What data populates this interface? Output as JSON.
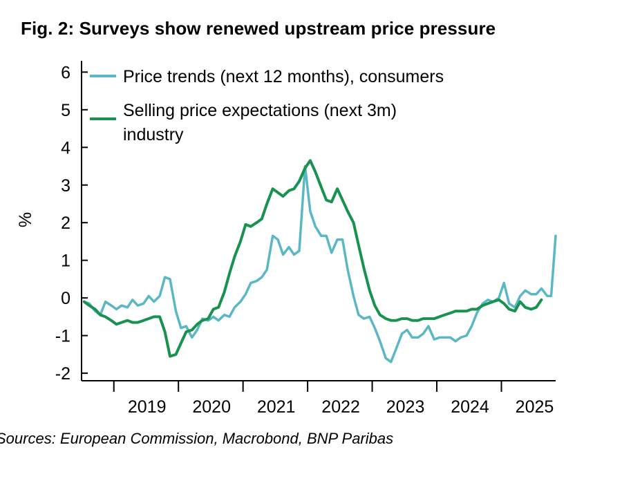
{
  "title": "Fig. 2: Surveys show renewed upstream price pressure",
  "source": "Sources: European Commission, Macrobond, BNP Paribas",
  "chart_data": {
    "type": "line",
    "ylabel": "%",
    "ylim": [
      -2.2,
      6.3
    ],
    "yticks": [
      -2,
      -1,
      0,
      1,
      2,
      3,
      4,
      5,
      6
    ],
    "xlim": [
      2018.5,
      2025.84
    ],
    "x_tick_positions": [
      2019,
      2020,
      2021,
      2022,
      2023,
      2024,
      2025
    ],
    "x_labels": [
      {
        "text": "2019",
        "x": 2019.0
      },
      {
        "text": "2020",
        "x": 2020.0
      },
      {
        "text": "2021",
        "x": 2021.0
      },
      {
        "text": "2022",
        "x": 2022.0
      },
      {
        "text": "2023",
        "x": 2023.0
      },
      {
        "text": "2024",
        "x": 2024.0
      },
      {
        "text": "2025",
        "x": 2025.0
      }
    ],
    "legend_position": "top-left",
    "series": [
      {
        "name": "Price trends (next 12 months), consumers",
        "legend_lines": [
          "Price trends (next 12 months), consumers"
        ],
        "color": "#5ab8c6",
        "points": [
          [
            2018.54,
            -0.1
          ],
          [
            2018.62,
            -0.15
          ],
          [
            2018.71,
            -0.35
          ],
          [
            2018.79,
            -0.45
          ],
          [
            2018.87,
            -0.1
          ],
          [
            2018.96,
            -0.2
          ],
          [
            2019.04,
            -0.3
          ],
          [
            2019.12,
            -0.2
          ],
          [
            2019.21,
            -0.25
          ],
          [
            2019.29,
            -0.05
          ],
          [
            2019.37,
            -0.2
          ],
          [
            2019.46,
            -0.15
          ],
          [
            2019.54,
            0.05
          ],
          [
            2019.62,
            -0.1
          ],
          [
            2019.71,
            0.05
          ],
          [
            2019.79,
            0.55
          ],
          [
            2019.87,
            0.5
          ],
          [
            2019.96,
            -0.35
          ],
          [
            2020.04,
            -0.8
          ],
          [
            2020.12,
            -0.75
          ],
          [
            2020.21,
            -1.05
          ],
          [
            2020.29,
            -0.85
          ],
          [
            2020.37,
            -0.55
          ],
          [
            2020.46,
            -0.6
          ],
          [
            2020.54,
            -0.5
          ],
          [
            2020.62,
            -0.6
          ],
          [
            2020.71,
            -0.45
          ],
          [
            2020.79,
            -0.5
          ],
          [
            2020.87,
            -0.25
          ],
          [
            2020.96,
            -0.1
          ],
          [
            2021.04,
            0.1
          ],
          [
            2021.12,
            0.4
          ],
          [
            2021.21,
            0.45
          ],
          [
            2021.29,
            0.55
          ],
          [
            2021.37,
            0.75
          ],
          [
            2021.46,
            1.65
          ],
          [
            2021.54,
            1.55
          ],
          [
            2021.62,
            1.15
          ],
          [
            2021.71,
            1.35
          ],
          [
            2021.79,
            1.15
          ],
          [
            2021.87,
            1.25
          ],
          [
            2021.96,
            3.5
          ],
          [
            2022.04,
            2.3
          ],
          [
            2022.12,
            1.9
          ],
          [
            2022.21,
            1.65
          ],
          [
            2022.29,
            1.65
          ],
          [
            2022.37,
            1.2
          ],
          [
            2022.46,
            1.55
          ],
          [
            2022.54,
            1.55
          ],
          [
            2022.62,
            0.75
          ],
          [
            2022.71,
            0.05
          ],
          [
            2022.79,
            -0.45
          ],
          [
            2022.87,
            -0.55
          ],
          [
            2022.96,
            -0.5
          ],
          [
            2023.04,
            -0.8
          ],
          [
            2023.12,
            -1.15
          ],
          [
            2023.21,
            -1.6
          ],
          [
            2023.29,
            -1.7
          ],
          [
            2023.37,
            -1.35
          ],
          [
            2023.46,
            -0.95
          ],
          [
            2023.54,
            -0.85
          ],
          [
            2023.62,
            -1.05
          ],
          [
            2023.71,
            -1.05
          ],
          [
            2023.79,
            -0.95
          ],
          [
            2023.87,
            -0.75
          ],
          [
            2023.96,
            -1.1
          ],
          [
            2024.04,
            -1.05
          ],
          [
            2024.12,
            -1.05
          ],
          [
            2024.21,
            -1.05
          ],
          [
            2024.29,
            -1.15
          ],
          [
            2024.37,
            -1.05
          ],
          [
            2024.46,
            -1.0
          ],
          [
            2024.54,
            -0.75
          ],
          [
            2024.62,
            -0.4
          ],
          [
            2024.71,
            -0.15
          ],
          [
            2024.79,
            -0.05
          ],
          [
            2024.87,
            -0.1
          ],
          [
            2024.96,
            -0.0
          ],
          [
            2025.04,
            0.4
          ],
          [
            2025.12,
            -0.15
          ],
          [
            2025.21,
            -0.25
          ],
          [
            2025.29,
            0.05
          ],
          [
            2025.37,
            0.2
          ],
          [
            2025.46,
            0.1
          ],
          [
            2025.54,
            0.1
          ],
          [
            2025.62,
            0.25
          ],
          [
            2025.71,
            0.05
          ],
          [
            2025.77,
            0.05
          ],
          [
            2025.84,
            1.65
          ]
        ]
      },
      {
        "name": "Selling price expectations (next 3m) industry",
        "legend_lines": [
          "Selling price expectations (next 3m)",
          "industry"
        ],
        "color": "#17924f",
        "points": [
          [
            2018.54,
            -0.1
          ],
          [
            2018.62,
            -0.2
          ],
          [
            2018.71,
            -0.3
          ],
          [
            2018.79,
            -0.45
          ],
          [
            2018.87,
            -0.5
          ],
          [
            2018.96,
            -0.6
          ],
          [
            2019.04,
            -0.7
          ],
          [
            2019.12,
            -0.65
          ],
          [
            2019.21,
            -0.6
          ],
          [
            2019.29,
            -0.65
          ],
          [
            2019.37,
            -0.65
          ],
          [
            2019.46,
            -0.6
          ],
          [
            2019.54,
            -0.55
          ],
          [
            2019.62,
            -0.5
          ],
          [
            2019.71,
            -0.5
          ],
          [
            2019.79,
            -0.9
          ],
          [
            2019.87,
            -1.55
          ],
          [
            2019.96,
            -1.5
          ],
          [
            2020.04,
            -1.2
          ],
          [
            2020.12,
            -0.9
          ],
          [
            2020.21,
            -0.85
          ],
          [
            2020.29,
            -0.7
          ],
          [
            2020.37,
            -0.6
          ],
          [
            2020.46,
            -0.55
          ],
          [
            2020.54,
            -0.3
          ],
          [
            2020.62,
            -0.25
          ],
          [
            2020.71,
            0.15
          ],
          [
            2020.79,
            0.65
          ],
          [
            2020.87,
            1.1
          ],
          [
            2020.96,
            1.5
          ],
          [
            2021.04,
            1.95
          ],
          [
            2021.12,
            1.9
          ],
          [
            2021.21,
            2.0
          ],
          [
            2021.29,
            2.1
          ],
          [
            2021.37,
            2.5
          ],
          [
            2021.46,
            2.9
          ],
          [
            2021.54,
            2.8
          ],
          [
            2021.62,
            2.7
          ],
          [
            2021.71,
            2.85
          ],
          [
            2021.79,
            2.9
          ],
          [
            2021.87,
            3.1
          ],
          [
            2021.96,
            3.45
          ],
          [
            2022.04,
            3.65
          ],
          [
            2022.12,
            3.35
          ],
          [
            2022.21,
            2.95
          ],
          [
            2022.29,
            2.6
          ],
          [
            2022.37,
            2.55
          ],
          [
            2022.46,
            2.9
          ],
          [
            2022.54,
            2.6
          ],
          [
            2022.62,
            2.3
          ],
          [
            2022.71,
            2.0
          ],
          [
            2022.79,
            1.4
          ],
          [
            2022.87,
            0.8
          ],
          [
            2022.96,
            0.2
          ],
          [
            2023.04,
            -0.2
          ],
          [
            2023.12,
            -0.45
          ],
          [
            2023.21,
            -0.55
          ],
          [
            2023.29,
            -0.6
          ],
          [
            2023.37,
            -0.6
          ],
          [
            2023.46,
            -0.55
          ],
          [
            2023.54,
            -0.55
          ],
          [
            2023.62,
            -0.6
          ],
          [
            2023.71,
            -0.6
          ],
          [
            2023.79,
            -0.55
          ],
          [
            2023.87,
            -0.55
          ],
          [
            2023.96,
            -0.55
          ],
          [
            2024.04,
            -0.5
          ],
          [
            2024.12,
            -0.45
          ],
          [
            2024.21,
            -0.4
          ],
          [
            2024.29,
            -0.35
          ],
          [
            2024.37,
            -0.35
          ],
          [
            2024.46,
            -0.35
          ],
          [
            2024.54,
            -0.3
          ],
          [
            2024.62,
            -0.3
          ],
          [
            2024.71,
            -0.2
          ],
          [
            2024.79,
            -0.15
          ],
          [
            2024.87,
            -0.1
          ],
          [
            2024.96,
            -0.05
          ],
          [
            2025.04,
            -0.15
          ],
          [
            2025.12,
            -0.3
          ],
          [
            2025.21,
            -0.35
          ],
          [
            2025.29,
            -0.1
          ],
          [
            2025.37,
            -0.25
          ],
          [
            2025.46,
            -0.3
          ],
          [
            2025.54,
            -0.25
          ],
          [
            2025.62,
            -0.05
          ]
        ]
      }
    ]
  }
}
